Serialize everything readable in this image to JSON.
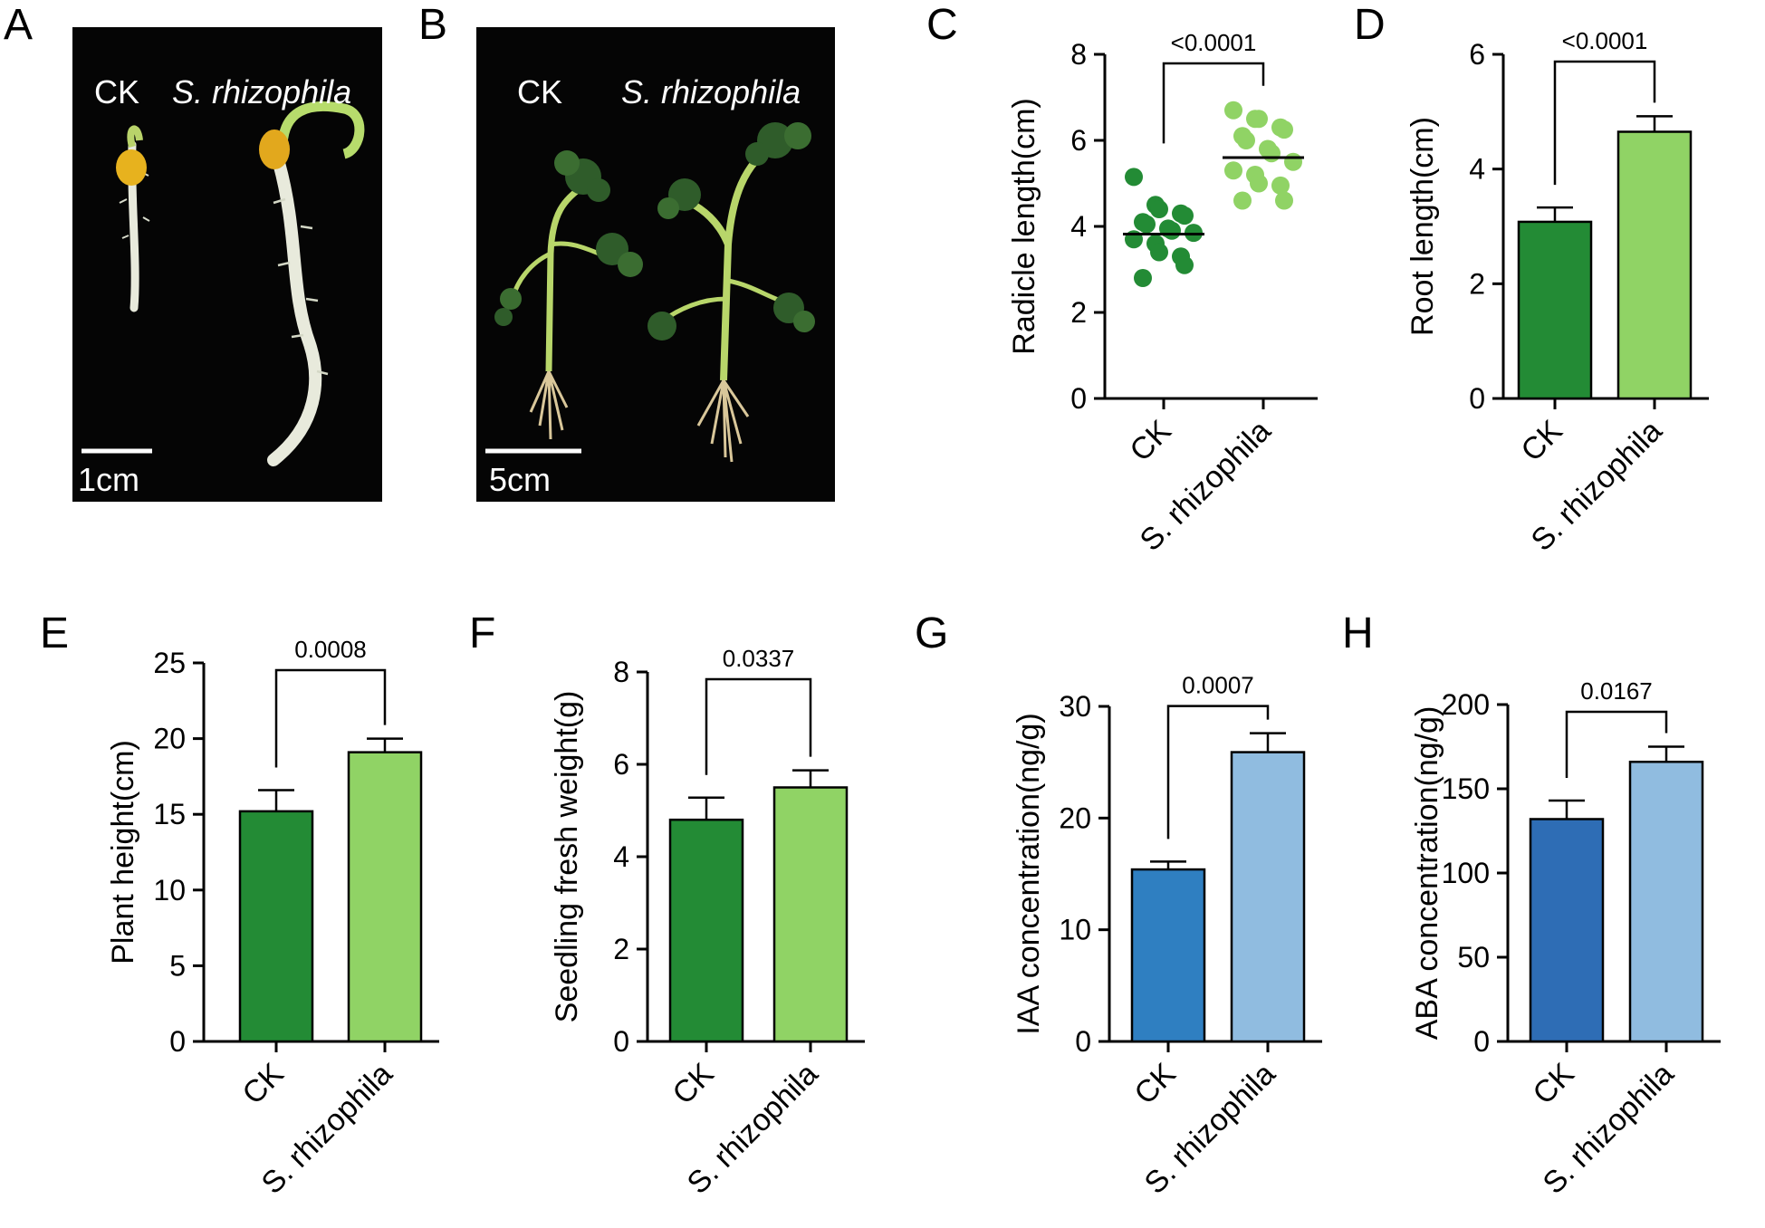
{
  "panels": [
    {
      "letter": "A"
    },
    {
      "letter": "B"
    },
    {
      "letter": "C"
    },
    {
      "letter": "D"
    },
    {
      "letter": "E"
    },
    {
      "letter": "F"
    },
    {
      "letter": "G"
    },
    {
      "letter": "H"
    }
  ],
  "photoA": {
    "left_label": "CK",
    "right_label": "S. rhizophila",
    "scale_label": "1cm"
  },
  "photoB": {
    "left_label": "CK",
    "right_label": "S. rhizophila",
    "scale_label": "5cm"
  },
  "colors": {
    "ck_green": "#238b35",
    "sr_green": "#90d365",
    "ck_blue": "#2f7fc1",
    "sr_blue": "#90bce0"
  },
  "chart_data": [
    {
      "id": "C",
      "type": "scatter",
      "categories": [
        "CK",
        "S. rhizophila"
      ],
      "ylabel": "Radicle length(cm)",
      "ylim": [
        0,
        8
      ],
      "yticks": [
        0,
        2,
        4,
        6,
        8
      ],
      "pvalue": "<0.0001",
      "series": [
        {
          "values": [
            5.15,
            4.5,
            4.4,
            4.3,
            4.25,
            4.1,
            4.05,
            3.95,
            3.9,
            3.85,
            3.7,
            3.6,
            3.4,
            3.3,
            3.1,
            2.8
          ],
          "mean": 3.82,
          "color": "#238b35"
        },
        {
          "values": [
            6.7,
            6.5,
            6.5,
            6.3,
            6.25,
            6.1,
            6.0,
            5.8,
            5.7,
            5.5,
            5.3,
            5.2,
            5.0,
            4.95,
            4.6,
            4.6
          ],
          "mean": 5.6,
          "color": "#90d365"
        }
      ]
    },
    {
      "id": "D",
      "type": "bar",
      "categories": [
        "CK",
        "S. rhizophila"
      ],
      "ylabel": "Root length(cm)",
      "ylim": [
        0,
        6
      ],
      "yticks": [
        0,
        2,
        4,
        6
      ],
      "pvalue": "<0.0001",
      "values": [
        3.08,
        4.65
      ],
      "errors": [
        0.25,
        0.27
      ],
      "colors": [
        "#238b35",
        "#90d365"
      ]
    },
    {
      "id": "E",
      "type": "bar",
      "categories": [
        "CK",
        "S. rhizophila"
      ],
      "ylabel": "Plant height(cm)",
      "ylim": [
        0,
        25
      ],
      "yticks": [
        0,
        5,
        10,
        15,
        20,
        25
      ],
      "pvalue": "0.0008",
      "values": [
        15.2,
        19.1
      ],
      "errors": [
        1.4,
        0.9
      ],
      "colors": [
        "#238b35",
        "#90d365"
      ]
    },
    {
      "id": "F",
      "type": "bar",
      "categories": [
        "CK",
        "S. rhizophila"
      ],
      "ylabel": "Seedling fresh weight(g)",
      "ylim": [
        0,
        8
      ],
      "yticks": [
        0,
        2,
        4,
        6,
        8
      ],
      "pvalue": "0.0337",
      "values": [
        4.8,
        5.5
      ],
      "errors": [
        0.48,
        0.37
      ],
      "colors": [
        "#238b35",
        "#90d365"
      ]
    },
    {
      "id": "G",
      "type": "bar",
      "categories": [
        "CK",
        "S. rhizophila"
      ],
      "ylabel": "IAA concentration(ng/g)",
      "ylim": [
        0,
        30
      ],
      "yticks": [
        0,
        10,
        20,
        30
      ],
      "pvalue": "0.0007",
      "values": [
        15.4,
        25.9
      ],
      "errors": [
        0.7,
        1.7
      ],
      "colors": [
        "#2f7fc1",
        "#90bce0"
      ]
    },
    {
      "id": "H",
      "type": "bar",
      "categories": [
        "CK",
        "S. rhizophila"
      ],
      "ylabel": "ABA  concentration(ng/g)",
      "ylim": [
        0,
        200
      ],
      "yticks": [
        0,
        50,
        100,
        150,
        200
      ],
      "pvalue": "0.0167",
      "values": [
        132,
        166
      ],
      "errors": [
        11,
        9
      ],
      "colors": [
        "#2e6db5",
        "#90bce0"
      ]
    }
  ]
}
